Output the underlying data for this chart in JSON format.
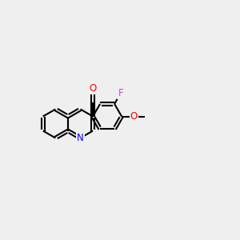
{
  "bg_color": "#efefef",
  "bond_color": "#000000",
  "N_color": "#0000ff",
  "O_color": "#ff0000",
  "F_color": "#cc44cc",
  "lw": 1.5,
  "font_size": 8.5,
  "xlim": [
    0,
    10
  ],
  "ylim": [
    2.5,
    7.5
  ]
}
